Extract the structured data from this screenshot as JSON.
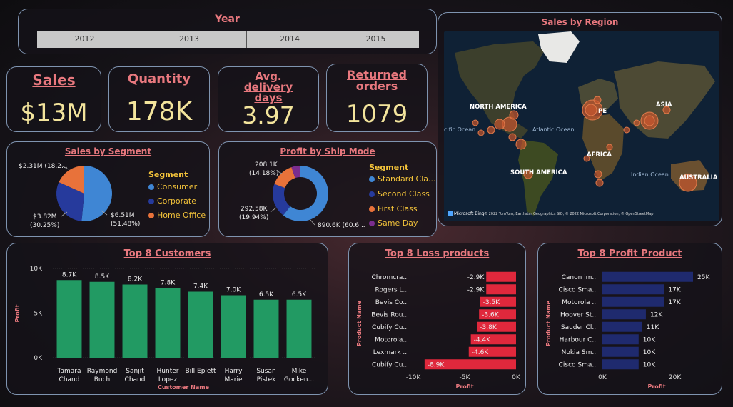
{
  "year_slicer": {
    "title": "Year",
    "years": [
      "2012",
      "2013",
      "2014",
      "2015"
    ]
  },
  "kpis": {
    "sales": {
      "title": "Sales",
      "value": "$13M"
    },
    "quantity": {
      "title": "Quantity",
      "value": "178K"
    },
    "delivery": {
      "title": "Avg. delivery days",
      "value": "3.97"
    },
    "returned": {
      "title": "Returned orders",
      "value": "1079"
    }
  },
  "map": {
    "title": "Sales by Region",
    "labels": {
      "north_america": "NORTH AMERICA",
      "south_america": "SOUTH AMERICA",
      "asia": "ASIA",
      "africa": "AFRICA",
      "australia": "AUSTRALIA",
      "europe": "PE",
      "atlantic": "Atlantic Ocean",
      "indian": "Indian Ocean",
      "pacific": "cific Ocean"
    },
    "attribution_brand": "Microsoft Bing",
    "attribution": "© 2022 TomTom, Earthstar Geographics SIO, © 2022 Microsoft Corporation, © OpenStreetMap"
  },
  "colors": {
    "consumer": "#3f86d4",
    "corporate": "#263a9c",
    "home_office": "#e8723a",
    "standard": "#3f86d4",
    "second": "#263a9c",
    "first": "#e8723a",
    "same_day": "#7b2d8e",
    "customers_bar": "#229a63",
    "loss_bar": "#e0283c",
    "profit_bar": "#1f2a6e",
    "title_pink": "#e8787e",
    "kpi_yellow": "#f3e49c",
    "legend_gold": "#f3c33a"
  },
  "segment": {
    "title": "Sales by Segment",
    "legend_title": "Segment",
    "items": [
      {
        "name": "Consumer",
        "value": 6.51,
        "label": "$6.51M",
        "pct": "(51.48%)"
      },
      {
        "name": "Corporate",
        "value": 3.82,
        "label": "$3.82M",
        "pct": "(30.25%)"
      },
      {
        "name": "Home Office",
        "value": 2.31,
        "label": "$2.31M (18.2...",
        "pct": ""
      }
    ]
  },
  "ship_mode": {
    "title": "Profit by Ship Mode",
    "legend_title": "Segment",
    "items": [
      {
        "name": "Standard Cla...",
        "value": 890.6,
        "label": "890.6K (60.6...",
        "pct": ""
      },
      {
        "name": "Second Class",
        "value": 292.58,
        "label": "292.58K",
        "pct": "(19.94%)"
      },
      {
        "name": "First Class",
        "value": 208.1,
        "label": "208.1K",
        "pct": "(14.18%)"
      },
      {
        "name": "Same Day",
        "value": 77.0,
        "label": "",
        "pct": ""
      }
    ]
  },
  "chart_data": [
    {
      "type": "bar",
      "title": "Top 8 Customers",
      "xlabel": "Customer Name",
      "ylabel": "Profit",
      "categories": [
        "Tamara Chand",
        "Raymond Buch",
        "Sanjit Chand",
        "Hunter Lopez",
        "Bill Eplett",
        "Harry Marie",
        "Susan Pistek",
        "Mike Gocken..."
      ],
      "category_lines": [
        [
          "Tamara",
          "Chand"
        ],
        [
          "Raymond",
          "Buch"
        ],
        [
          "Sanjit",
          "Chand"
        ],
        [
          "Hunter",
          "Lopez"
        ],
        [
          "Bill Eplett",
          ""
        ],
        [
          "Harry",
          "Marie"
        ],
        [
          "Susan",
          "Pistek"
        ],
        [
          "Mike",
          "Gocken..."
        ]
      ],
      "values": [
        8.7,
        8.5,
        8.2,
        7.8,
        7.4,
        7.0,
        6.5,
        6.5
      ],
      "value_labels": [
        "8.7K",
        "8.5K",
        "8.2K",
        "7.8K",
        "7.4K",
        "7.0K",
        "6.5K",
        "6.5K"
      ],
      "ylim": [
        0,
        10
      ],
      "yticks": [
        "0K",
        "5K",
        "10K"
      ],
      "grid": true
    },
    {
      "type": "bar",
      "orientation": "horizontal",
      "title": "Top 8 Loss products",
      "xlabel": "Profit",
      "ylabel": "Product Name",
      "categories": [
        "Chromcra...",
        "Rogers L...",
        "Bevis Co...",
        "Bevis Rou...",
        "Cubify Cu...",
        "Motorola...",
        "Lexmark ...",
        "Cubify Cu..."
      ],
      "values": [
        -2.9,
        -2.9,
        -3.5,
        -3.6,
        -3.8,
        -4.4,
        -4.6,
        -8.9
      ],
      "value_labels": [
        "-2.9K",
        "-2.9K",
        "-3.5K",
        "-3.6K",
        "-3.8K",
        "-4.4K",
        "-4.6K",
        "-8.9K"
      ],
      "xlim": [
        -10,
        0
      ],
      "xticks": [
        "-10K",
        "-5K",
        "0K"
      ]
    },
    {
      "type": "bar",
      "orientation": "horizontal",
      "title": "Top 8 Profit Product",
      "xlabel": "Profit",
      "ylabel": "Product Name",
      "categories": [
        "Canon im...",
        "Cisco Sma...",
        "Motorola ...",
        "Hoover St...",
        "Sauder Cl...",
        "Harbour C...",
        "Nokia Sm...",
        "Cisco Sma..."
      ],
      "values": [
        25,
        17,
        17,
        12,
        11,
        10,
        10,
        10
      ],
      "value_labels": [
        "25K",
        "17K",
        "17K",
        "12K",
        "11K",
        "10K",
        "10K",
        "10K"
      ],
      "xlim": [
        0,
        25
      ],
      "xticks": [
        "0K",
        "20K"
      ]
    }
  ]
}
